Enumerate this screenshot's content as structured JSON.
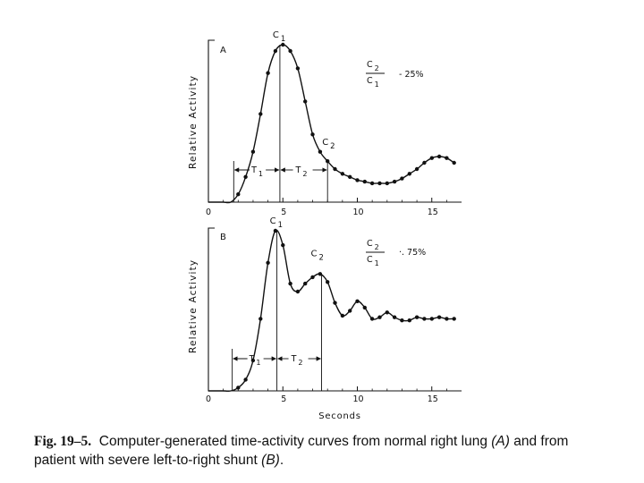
{
  "chart_data": [
    {
      "type": "line",
      "panel_label": "A",
      "ylabel": "Relative Activity",
      "xlim": [
        0,
        17
      ],
      "ticks": [
        "0",
        "5",
        "10",
        "15"
      ],
      "tick_values": [
        0,
        5,
        10,
        15
      ],
      "series": [
        {
          "x": [
            0.0,
            0.5,
            1.0,
            1.5,
            2.0,
            2.5,
            3.0,
            3.5,
            4.0,
            4.5,
            5.0,
            5.5,
            6.0,
            6.5,
            7.0,
            7.5,
            8.0,
            8.5,
            9.0,
            9.5,
            10.0,
            10.5,
            11.0,
            11.5,
            12.0,
            12.5,
            13.0,
            13.5,
            14.0,
            14.5,
            15.0,
            15.5,
            16.0,
            16.5
          ],
          "y": [
            0.0,
            0.0,
            0.0,
            0.0,
            0.05,
            0.16,
            0.32,
            0.56,
            0.82,
            0.96,
            1.0,
            0.96,
            0.85,
            0.64,
            0.43,
            0.32,
            0.26,
            0.21,
            0.18,
            0.16,
            0.14,
            0.13,
            0.12,
            0.12,
            0.12,
            0.13,
            0.15,
            0.18,
            0.21,
            0.25,
            0.28,
            0.29,
            0.28,
            0.25
          ]
        }
      ],
      "peak1": {
        "label_main": "C",
        "label_sub": "1",
        "x": 4.8
      },
      "peak2": {
        "label_main": "C",
        "label_sub": "2",
        "x": 8.0
      },
      "t1": {
        "label_main": "T",
        "label_sub": "1",
        "from": 1.7,
        "to": 4.8
      },
      "t2": {
        "label_main": "T",
        "label_sub": "2",
        "from": 4.8,
        "to": 8.0
      },
      "ratio": {
        "num_main": "C",
        "num_sub": "2",
        "den_main": "C",
        "den_sub": "1",
        "value": "- 25%"
      }
    },
    {
      "type": "line",
      "panel_label": "B",
      "ylabel": "Relative Activity",
      "xlabel": "Seconds",
      "xlim": [
        0,
        17
      ],
      "ticks": [
        "0",
        "5",
        "10",
        "15"
      ],
      "tick_values": [
        0,
        5,
        10,
        15
      ],
      "series": [
        {
          "x": [
            0.0,
            0.5,
            1.0,
            1.5,
            2.0,
            2.5,
            3.0,
            3.5,
            4.0,
            4.5,
            5.0,
            5.5,
            6.0,
            6.5,
            7.0,
            7.5,
            8.0,
            8.5,
            9.0,
            9.5,
            10.0,
            10.5,
            11.0,
            11.5,
            12.0,
            12.5,
            13.0,
            13.5,
            14.0,
            14.5,
            15.0,
            15.5,
            16.0,
            16.5
          ],
          "y": [
            0.0,
            0.0,
            0.0,
            0.0,
            0.02,
            0.07,
            0.19,
            0.45,
            0.8,
            1.0,
            0.91,
            0.67,
            0.62,
            0.67,
            0.71,
            0.73,
            0.68,
            0.55,
            0.47,
            0.5,
            0.56,
            0.52,
            0.45,
            0.46,
            0.49,
            0.46,
            0.44,
            0.44,
            0.46,
            0.45,
            0.45,
            0.46,
            0.45,
            0.45
          ]
        }
      ],
      "peak1": {
        "label_main": "C",
        "label_sub": "1",
        "x": 4.6
      },
      "peak2": {
        "label_main": "C",
        "label_sub": "2",
        "x": 7.6
      },
      "t1": {
        "label_main": "T",
        "label_sub": "1",
        "from": 1.6,
        "to": 4.6
      },
      "t2": {
        "label_main": "T",
        "label_sub": "2",
        "from": 4.6,
        "to": 7.6
      },
      "ratio": {
        "num_main": "C",
        "num_sub": "2",
        "den_main": "C",
        "den_sub": "1",
        "value": "·. 75%"
      }
    }
  ],
  "caption": {
    "fig_label": "Fig. 19–5.",
    "part1": "Computer-generated time-activity curves from normal right lung",
    "paren_a": "(A)",
    "part2": "and from patient with severe left-to-right shunt",
    "paren_b": "(B)",
    "end": "."
  }
}
